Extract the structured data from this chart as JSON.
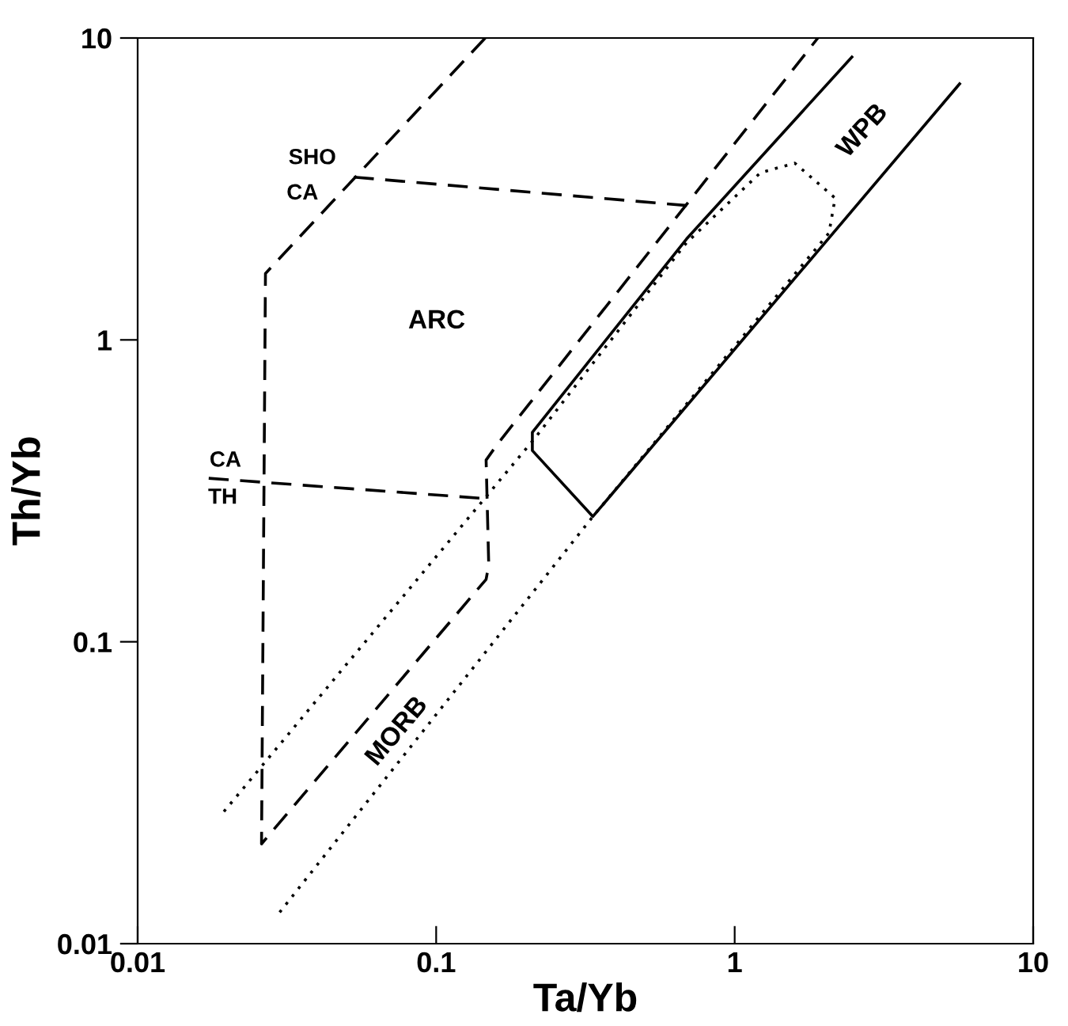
{
  "chart_data": {
    "type": "line",
    "xlabel": "Ta/Yb",
    "ylabel": "Th/Yb",
    "log": "xy",
    "xlim": [
      0.01,
      10
    ],
    "ylim": [
      0.01,
      10
    ],
    "xticks": [
      0.01,
      0.1,
      1,
      10
    ],
    "yticks": [
      0.01,
      0.1,
      1,
      10
    ],
    "grid": false,
    "series": [
      {
        "color": "#000000",
        "line_style": "dashed",
        "x": [
          0.146,
          0.0268,
          0.026,
          0.147,
          0.15,
          0.147,
          0.16,
          1.9
        ],
        "values": [
          10,
          1.66,
          0.0214,
          0.161,
          0.18,
          0.4,
          0.45,
          10
        ]
      },
      {
        "color": "#000000",
        "line_style": "dashed",
        "x": [
          0.053,
          0.71
        ],
        "values": [
          3.46,
          2.78
        ]
      },
      {
        "color": "#000000",
        "line_style": "dashed",
        "x": [
          0.0173,
          0.147
        ],
        "values": [
          0.348,
          0.298
        ]
      },
      {
        "color": "#000000",
        "line_style": "solid",
        "x": [
          2.47,
          0.69,
          0.21,
          0.21,
          0.335,
          5.67
        ],
        "values": [
          8.65,
          2.16,
          0.494,
          0.43,
          0.26,
          7.05
        ]
      },
      {
        "color": "#000000",
        "line_style": "dotted",
        "x": [
          0.0299,
          0.335,
          2.07,
          2.17,
          1.59,
          1.22,
          0.69,
          0.215,
          0.0188
        ],
        "values": [
          0.0127,
          0.26,
          2.26,
          2.95,
          3.85,
          3.58,
          2.1,
          0.475,
          0.0263
        ]
      }
    ],
    "annotations": [
      "ARC",
      "WPB",
      "MORB",
      "SHO",
      "CA",
      "CA",
      "TH"
    ]
  }
}
